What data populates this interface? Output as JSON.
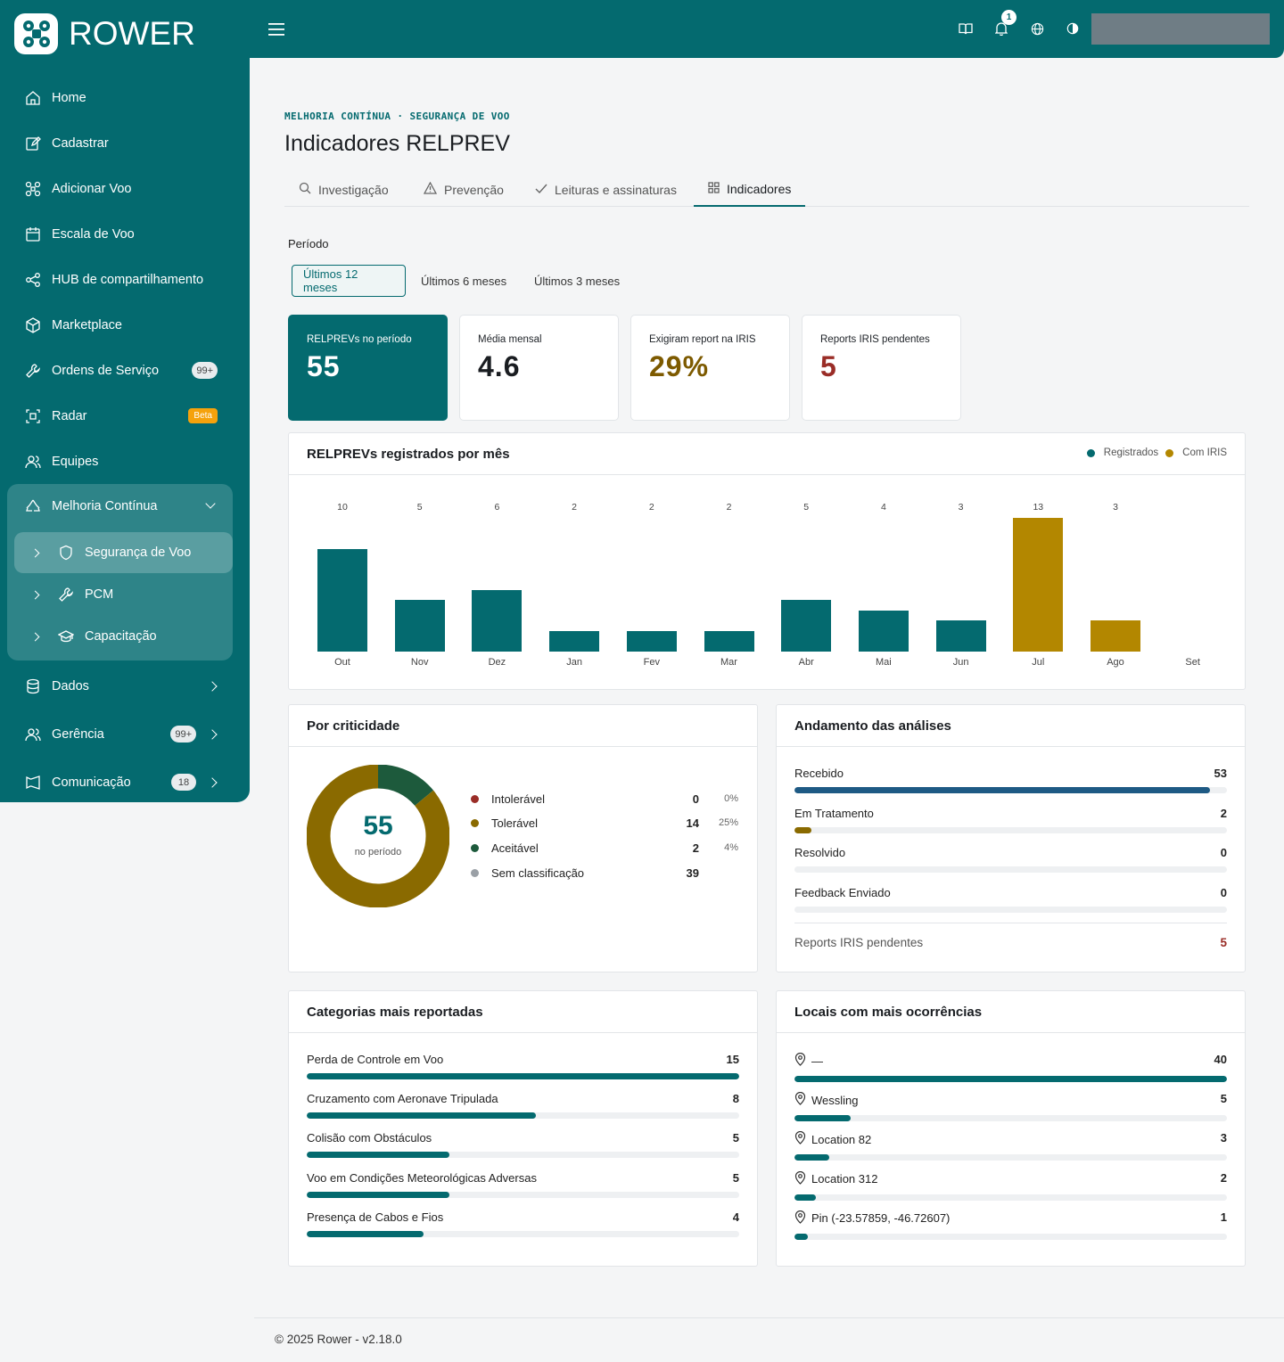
{
  "app": {
    "brand": "ROWER",
    "notification_count": "1"
  },
  "sidebar": {
    "items": [
      {
        "label": "Home",
        "icon": "home-icon"
      },
      {
        "label": "Cadastrar",
        "icon": "edit-icon"
      },
      {
        "label": "Adicionar Voo",
        "icon": "drone-icon"
      },
      {
        "label": "Escala de Voo",
        "icon": "calendar-icon"
      },
      {
        "label": "HUB de compartilhamento",
        "icon": "share-icon"
      },
      {
        "label": "Marketplace",
        "icon": "box-icon"
      },
      {
        "label": "Ordens de Serviço",
        "icon": "wrench-icon",
        "badge": "99+"
      },
      {
        "label": "Radar",
        "icon": "radar-icon",
        "badge": "Beta"
      },
      {
        "label": "Equipes",
        "icon": "users-icon"
      }
    ],
    "group": {
      "label": "Melhoria Contínua",
      "icon": "recycle-icon",
      "children": [
        {
          "label": "Segurança de Voo",
          "icon": "shield-icon"
        },
        {
          "label": "PCM",
          "icon": "wrench-icon"
        },
        {
          "label": "Capacitação",
          "icon": "graduation-cap-icon"
        }
      ]
    },
    "bottom": [
      {
        "label": "Dados",
        "icon": "database-icon"
      },
      {
        "label": "Gerência",
        "icon": "users-icon",
        "badge": "99+"
      },
      {
        "label": "Comunicação",
        "icon": "megaphone-icon",
        "badge": "18"
      }
    ]
  },
  "page": {
    "breadcrumb": "MELHORIA CONTÍNUA · SEGURANÇA DE VOO",
    "title": "Indicadores RELPREV",
    "tabs": [
      {
        "label": "Investigação",
        "icon": "search-icon"
      },
      {
        "label": "Prevenção",
        "icon": "warning-icon"
      },
      {
        "label": "Leituras e assinaturas",
        "icon": "check-icon"
      },
      {
        "label": "Indicadores",
        "icon": "grid-icon"
      }
    ],
    "periodo_label": "Período",
    "periods": [
      "Últimos 12 meses",
      "Últimos 6 meses",
      "Últimos 3 meses"
    ]
  },
  "stats": [
    {
      "label": "RELPREVs no período",
      "value": "55",
      "color": "#ffffff"
    },
    {
      "label": "Média mensal",
      "value": "4.6",
      "color": "#1a1d21"
    },
    {
      "label": "Exigiram report na IRIS",
      "value": "29%",
      "color": "#7d5a00"
    },
    {
      "label": "Reports IRIS pendentes",
      "value": "5",
      "color": "#9a2d27"
    }
  ],
  "monthly": {
    "title": "RELPREVs registrados por mês",
    "legend": [
      "Registrados",
      "Com IRIS"
    ],
    "colors": {
      "registrados": "#046a6f",
      "iris": "#b38700"
    }
  },
  "chart_data": {
    "type": "bar",
    "categories": [
      "Out",
      "Nov",
      "Dez",
      "Jan",
      "Fev",
      "Mar",
      "Abr",
      "Mai",
      "Jun",
      "Jul",
      "Ago",
      "Set"
    ],
    "values": [
      10,
      5,
      6,
      2,
      2,
      2,
      5,
      4,
      3,
      13,
      3,
      0
    ],
    "value_labels": [
      "10",
      "5",
      "6",
      "2",
      "2",
      "2",
      "5",
      "4",
      "3",
      "13",
      "3",
      ""
    ],
    "highlight": [
      false,
      false,
      false,
      false,
      false,
      false,
      false,
      false,
      false,
      true,
      true,
      false
    ],
    "title": "RELPREVs registrados por mês",
    "ylim": [
      0,
      13
    ]
  },
  "criticidade": {
    "title": "Por criticidade",
    "total": "55",
    "total_label": "no período",
    "rows": [
      {
        "name": "Intolerável",
        "count": "0",
        "pct": "0%",
        "color": "#9a2d27"
      },
      {
        "name": "Tolerável",
        "count": "14",
        "pct": "25%",
        "color": "#8a6a00"
      },
      {
        "name": "Aceitável",
        "count": "2",
        "pct": "4%",
        "color": "#1d5a3c"
      },
      {
        "name": "Sem classificação",
        "count": "39",
        "pct": "",
        "color": "#9aa0a6"
      }
    ],
    "donut": [
      {
        "value": 14,
        "color": "#1d5a3c"
      },
      {
        "value": 86,
        "color": "#8a6a00"
      }
    ]
  },
  "andamento": {
    "title": "Andamento das análises",
    "rows": [
      {
        "label": "Recebido",
        "value": "53",
        "fill": 0.96,
        "color": "#1e5a84"
      },
      {
        "label": "Em Tratamento",
        "value": "2",
        "fill": 0.04,
        "color": "#8a6a00"
      },
      {
        "label": "Resolvido",
        "value": "0",
        "fill": 0,
        "color": "#046a6f"
      },
      {
        "label": "Feedback Enviado",
        "value": "0",
        "fill": 0,
        "color": "#046a6f"
      }
    ],
    "iris_label": "Reports IRIS pendentes",
    "iris_value": "5"
  },
  "categorias": {
    "title": "Categorias mais reportadas",
    "rows": [
      {
        "label": "Perda de Controle em Voo",
        "value": "15",
        "fill": 1.0
      },
      {
        "label": "Cruzamento com Aeronave Tripulada",
        "value": "8",
        "fill": 0.53
      },
      {
        "label": "Colisão com Obstáculos",
        "value": "5",
        "fill": 0.33
      },
      {
        "label": "Voo em Condições Meteorológicas Adversas",
        "value": "5",
        "fill": 0.33
      },
      {
        "label": "Presença de Cabos e Fios",
        "value": "4",
        "fill": 0.27
      }
    ]
  },
  "locais": {
    "title": "Locais com mais ocorrências",
    "rows": [
      {
        "label": "—",
        "value": "40",
        "fill": 1.0
      },
      {
        "label": "Wessling",
        "value": "5",
        "fill": 0.13
      },
      {
        "label": "Location 82",
        "value": "3",
        "fill": 0.08
      },
      {
        "label": "Location 312",
        "value": "2",
        "fill": 0.05
      },
      {
        "label": "Pin (-23.57859, -46.72607)",
        "value": "1",
        "fill": 0.03
      }
    ]
  },
  "footer": {
    "text": "© 2025 Rower - v2.18.0"
  }
}
